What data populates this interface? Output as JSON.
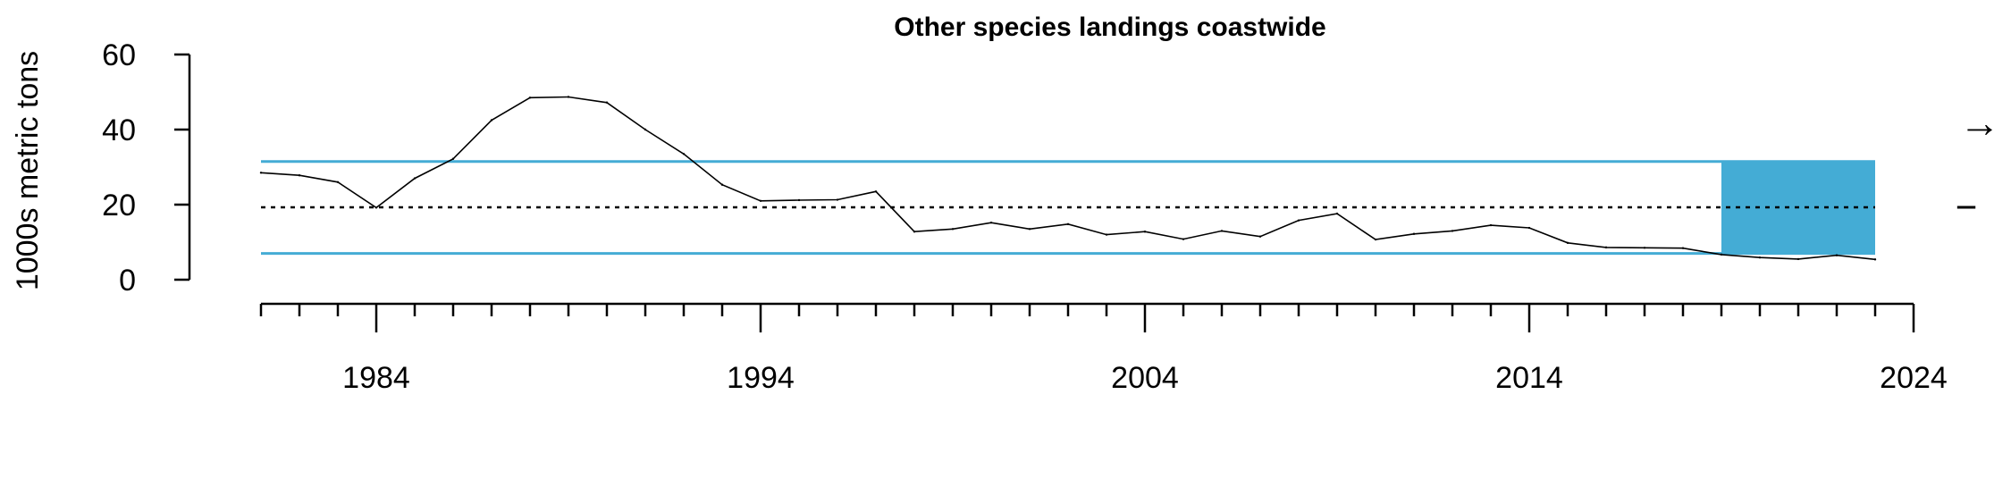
{
  "chart_data": {
    "type": "line",
    "title": "Other species landings coastwide",
    "xlabel": "",
    "ylabel": "1000s metric tons",
    "xlim": [
      1981,
      2024
    ],
    "ylim": [
      0,
      60
    ],
    "x_ticks": [
      1984,
      1994,
      2004,
      2014,
      2024
    ],
    "y_ticks": [
      0,
      20,
      40,
      60
    ],
    "series": [
      {
        "x": [
          1981,
          1982,
          1983,
          1984,
          1985,
          1986,
          1987,
          1988,
          1989,
          1990,
          1991,
          1992,
          1993,
          1994,
          1995,
          1996,
          1997,
          1998,
          1999,
          2000,
          2001,
          2002,
          2003,
          2004,
          2005,
          2006,
          2007,
          2008,
          2009,
          2010,
          2011,
          2012,
          2013,
          2014,
          2015,
          2016,
          2017,
          2018,
          2019,
          2020,
          2021,
          2022,
          2023
        ],
        "y": [
          28.5,
          27.8,
          26,
          19.2,
          27,
          32.2,
          42.5,
          48.5,
          48.7,
          47.2,
          40,
          33.5,
          25.3,
          21,
          21.2,
          21.3,
          23.5,
          12.8,
          13.5,
          15.2,
          13.5,
          14.8,
          12,
          12.8,
          10.8,
          13,
          11.5,
          15.8,
          17.6,
          10.7,
          12.2,
          13,
          14.5,
          13.8,
          9.8,
          8.6,
          8.5,
          8.4,
          6.7,
          5.9,
          5.5,
          6.5,
          5.4
        ]
      }
    ],
    "mean": 19.3,
    "upper_sd": 31.5,
    "lower_sd": 7.0,
    "highlight_start": 2019,
    "highlight_end": 2023,
    "trend_symbol": "→",
    "mean_symbol": "−",
    "colors": {
      "band": "#44acd5",
      "line": "#000000"
    }
  }
}
